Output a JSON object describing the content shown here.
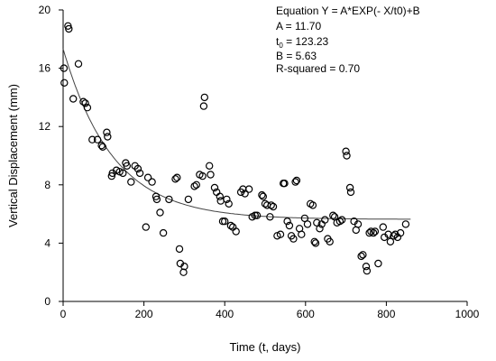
{
  "chart_data": {
    "type": "scatter",
    "title": "",
    "xlabel": "Time (t, days)",
    "ylabel": "Vertical Displacement (mm)",
    "xlim": [
      0,
      1000
    ],
    "ylim": [
      0,
      20
    ],
    "xticks": [
      0,
      200,
      400,
      600,
      800,
      1000
    ],
    "yticks": [
      0,
      4,
      8,
      12,
      16,
      20
    ],
    "grid": false,
    "annotation": {
      "equation": "Equation Y = A*EXP(- X/t0)+B",
      "a": "A = 11.70",
      "t0_prefix": "t",
      "t0_sub": "0",
      "t0_value": " = 123.23",
      "b": "B = 5.63",
      "r2": "R-squared = 0.70"
    },
    "fit": {
      "A": 11.7,
      "t0": 123.23,
      "B": 5.63
    },
    "series": [
      {
        "points": [
          [
            2,
            16.0
          ],
          [
            3,
            15.0
          ],
          [
            12,
            18.9
          ],
          [
            14,
            18.7
          ],
          [
            25,
            13.9
          ],
          [
            38,
            16.3
          ],
          [
            50,
            13.7
          ],
          [
            55,
            13.6
          ],
          [
            60,
            13.3
          ],
          [
            72,
            11.1
          ],
          [
            85,
            11.1
          ],
          [
            95,
            10.7
          ],
          [
            98,
            10.6
          ],
          [
            108,
            11.6
          ],
          [
            110,
            11.3
          ],
          [
            120,
            8.6
          ],
          [
            122,
            8.8
          ],
          [
            132,
            9.0
          ],
          [
            140,
            8.9
          ],
          [
            148,
            8.8
          ],
          [
            155,
            9.5
          ],
          [
            158,
            9.3
          ],
          [
            168,
            8.2
          ],
          [
            178,
            9.3
          ],
          [
            185,
            9.1
          ],
          [
            190,
            8.8
          ],
          [
            205,
            5.1
          ],
          [
            210,
            8.5
          ],
          [
            220,
            8.2
          ],
          [
            230,
            7.2
          ],
          [
            232,
            7.0
          ],
          [
            240,
            6.1
          ],
          [
            248,
            4.7
          ],
          [
            262,
            7.0
          ],
          [
            278,
            8.4
          ],
          [
            282,
            8.5
          ],
          [
            288,
            3.6
          ],
          [
            290,
            2.6
          ],
          [
            298,
            2.0
          ],
          [
            300,
            2.4
          ],
          [
            310,
            7.0
          ],
          [
            325,
            7.9
          ],
          [
            330,
            8.0
          ],
          [
            338,
            8.7
          ],
          [
            345,
            8.6
          ],
          [
            348,
            13.4
          ],
          [
            350,
            14.0
          ],
          [
            362,
            9.3
          ],
          [
            365,
            8.7
          ],
          [
            375,
            7.8
          ],
          [
            380,
            7.5
          ],
          [
            388,
            7.2
          ],
          [
            390,
            6.9
          ],
          [
            395,
            5.5
          ],
          [
            400,
            5.5
          ],
          [
            405,
            7.0
          ],
          [
            410,
            6.7
          ],
          [
            415,
            5.2
          ],
          [
            420,
            5.1
          ],
          [
            428,
            4.8
          ],
          [
            440,
            7.5
          ],
          [
            445,
            7.7
          ],
          [
            450,
            7.4
          ],
          [
            460,
            7.7
          ],
          [
            468,
            5.8
          ],
          [
            475,
            5.9
          ],
          [
            480,
            5.9
          ],
          [
            492,
            7.3
          ],
          [
            495,
            7.2
          ],
          [
            500,
            6.7
          ],
          [
            505,
            6.6
          ],
          [
            512,
            5.8
          ],
          [
            515,
            6.6
          ],
          [
            520,
            6.5
          ],
          [
            530,
            4.5
          ],
          [
            538,
            4.6
          ],
          [
            545,
            8.1
          ],
          [
            548,
            8.1
          ],
          [
            555,
            5.5
          ],
          [
            560,
            5.2
          ],
          [
            565,
            4.5
          ],
          [
            570,
            4.3
          ],
          [
            575,
            8.2
          ],
          [
            578,
            8.3
          ],
          [
            585,
            5.0
          ],
          [
            590,
            4.6
          ],
          [
            598,
            5.7
          ],
          [
            605,
            5.3
          ],
          [
            612,
            6.7
          ],
          [
            618,
            6.6
          ],
          [
            622,
            4.1
          ],
          [
            625,
            4.0
          ],
          [
            628,
            5.4
          ],
          [
            635,
            5.0
          ],
          [
            640,
            5.3
          ],
          [
            648,
            5.6
          ],
          [
            655,
            4.3
          ],
          [
            660,
            4.1
          ],
          [
            668,
            5.9
          ],
          [
            672,
            5.8
          ],
          [
            678,
            5.4
          ],
          [
            685,
            5.5
          ],
          [
            690,
            5.6
          ],
          [
            700,
            10.3
          ],
          [
            702,
            10.0
          ],
          [
            710,
            7.8
          ],
          [
            712,
            7.5
          ],
          [
            720,
            5.5
          ],
          [
            725,
            4.9
          ],
          [
            730,
            5.3
          ],
          [
            738,
            3.1
          ],
          [
            742,
            3.2
          ],
          [
            750,
            2.4
          ],
          [
            752,
            2.1
          ],
          [
            758,
            4.7
          ],
          [
            762,
            4.8
          ],
          [
            768,
            4.7
          ],
          [
            772,
            4.8
          ],
          [
            780,
            2.6
          ],
          [
            792,
            5.1
          ],
          [
            795,
            4.4
          ],
          [
            805,
            4.6
          ],
          [
            810,
            4.1
          ],
          [
            818,
            4.5
          ],
          [
            822,
            4.6
          ],
          [
            828,
            4.4
          ],
          [
            835,
            4.7
          ],
          [
            848,
            5.3
          ]
        ]
      }
    ]
  }
}
